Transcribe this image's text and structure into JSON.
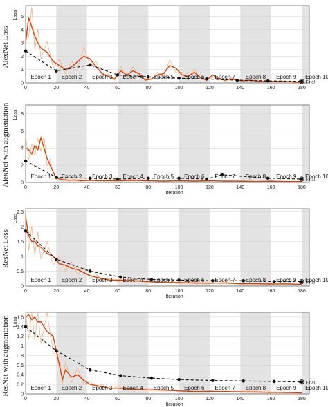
{
  "chart_data": [
    {
      "type": "line",
      "row_label": "AlexNet Loss",
      "ylabel": "Loss",
      "xlabel": "",
      "xlim": [
        0,
        185
      ],
      "ylim": [
        0,
        5.8
      ],
      "xticks": [
        0,
        20,
        40,
        60,
        80,
        100,
        120,
        140,
        160,
        180
      ],
      "yticks": [
        0,
        1,
        2,
        3,
        4,
        5
      ],
      "epoch_labels": [
        "Epoch 1",
        "Epoch 2",
        "Epoch 3",
        "Epoch 4",
        "Epoch 5",
        "Epoch 6",
        "Epoch 7",
        "Epoch 8",
        "Epoch 9",
        "Epoch 10"
      ],
      "final_label": "Final",
      "validation": {
        "x": [
          0,
          20,
          42,
          60,
          80,
          100,
          118,
          138,
          158,
          180
        ],
        "y": [
          2.4,
          0.9,
          1.35,
          0.6,
          0.45,
          0.35,
          0.3,
          0.2,
          0.15,
          0.12
        ]
      },
      "training_x": [
        0,
        2,
        4,
        6,
        8,
        10,
        14,
        18,
        22,
        26,
        30,
        34,
        38,
        42,
        46,
        50,
        54,
        58,
        62,
        66,
        70,
        74,
        78,
        82,
        86,
        90,
        94,
        98,
        102,
        106,
        110,
        114,
        118,
        122,
        126,
        130,
        134,
        138,
        142,
        146,
        150,
        154,
        158,
        162,
        166,
        170,
        174,
        178,
        180
      ],
      "training_y": [
        3.0,
        4.9,
        4.2,
        3.5,
        3.0,
        2.6,
        2.3,
        1.6,
        1.3,
        1.0,
        1.2,
        1.6,
        2.0,
        1.8,
        1.2,
        0.7,
        0.5,
        0.3,
        0.9,
        0.6,
        0.9,
        0.7,
        0.2,
        0.3,
        0.6,
        0.7,
        1.3,
        1.1,
        0.6,
        0.5,
        0.8,
        0.4,
        0.2,
        0.6,
        0.3,
        0.2,
        0.3,
        0.2,
        0.15,
        0.2,
        0.15,
        0.1,
        0.15,
        0.1,
        0.12,
        0.1,
        0.08,
        0.05,
        0.05
      ]
    },
    {
      "type": "line",
      "row_label": "AlexNet with augmentation",
      "ylabel": "Loss",
      "xlabel": "Iteration",
      "xlim": [
        0,
        185
      ],
      "ylim": [
        0,
        9
      ],
      "xticks": [
        0,
        20,
        40,
        60,
        80,
        100,
        120,
        140,
        160,
        180
      ],
      "yticks": [
        0,
        2,
        4,
        6,
        8
      ],
      "epoch_labels": [
        "Epoch 1",
        "Epoch 2",
        "Epoch 3",
        "Epoch 4",
        "Epoch 5",
        "Epoch 6",
        "Epoch 7",
        "Epoch 8",
        "Epoch 9",
        "Epoch 10"
      ],
      "final_label": "Final",
      "validation": {
        "x": [
          0,
          20,
          42,
          60,
          80,
          100,
          118,
          128,
          158,
          180
        ],
        "y": [
          2.5,
          0.6,
          0.5,
          0.4,
          0.5,
          0.5,
          0.4,
          0.9,
          0.5,
          0.4
        ]
      },
      "training_x": [
        0,
        2,
        4,
        6,
        8,
        10,
        12,
        14,
        16,
        18,
        20,
        24,
        28,
        32,
        36,
        40,
        50,
        60,
        70,
        80,
        90,
        100,
        110,
        120,
        130,
        140,
        150,
        160,
        170,
        180
      ],
      "training_y": [
        4.0,
        3.8,
        3.3,
        4.3,
        3.8,
        5.2,
        4.0,
        2.8,
        2.0,
        1.2,
        0.5,
        0.35,
        0.25,
        0.3,
        0.2,
        0.25,
        0.2,
        0.2,
        0.25,
        0.2,
        0.15,
        0.2,
        0.15,
        0.2,
        0.15,
        0.15,
        0.1,
        0.15,
        0.1,
        0.1
      ]
    },
    {
      "type": "line",
      "row_label": "ResNet Loss",
      "ylabel": "Loss",
      "xlabel": "Iteration",
      "xlim": [
        0,
        185
      ],
      "ylim": [
        0,
        2.6
      ],
      "xticks": [
        0,
        20,
        40,
        60,
        80,
        100,
        120,
        140,
        160,
        180
      ],
      "yticks": [
        0,
        0.5,
        1,
        1.5,
        2,
        2.5
      ],
      "epoch_labels": [
        "Epoch 1",
        "Epoch 2",
        "Epoch 3",
        "Epoch 4",
        "Epoch 5",
        "Epoch 6",
        "Epoch 7",
        "Epoch 8",
        "Epoch 9",
        "Epoch 10"
      ],
      "final_label": "Final",
      "validation": {
        "x": [
          0,
          20,
          42,
          62,
          82,
          100,
          122,
          142,
          162,
          180
        ],
        "y": [
          1.85,
          0.9,
          0.5,
          0.3,
          0.22,
          0.2,
          0.18,
          0.18,
          0.15,
          0.15
        ]
      },
      "training_x": [
        0,
        2,
        4,
        6,
        8,
        10,
        14,
        18,
        22,
        26,
        30,
        34,
        38,
        42,
        46,
        50,
        55,
        60,
        70,
        80,
        90,
        100,
        110,
        120,
        130,
        140,
        150,
        160,
        170,
        180
      ],
      "training_y": [
        2.3,
        1.7,
        1.5,
        1.5,
        1.35,
        1.3,
        1.1,
        1.0,
        0.75,
        0.7,
        0.6,
        0.55,
        0.45,
        0.35,
        0.3,
        0.25,
        0.2,
        0.2,
        0.18,
        0.15,
        0.12,
        0.12,
        0.1,
        0.1,
        0.1,
        0.08,
        0.08,
        0.07,
        0.07,
        0.06
      ]
    },
    {
      "type": "line",
      "row_label": "ResNet with augmentation",
      "ylabel": "Loss",
      "xlabel": "Iteration",
      "xlim": [
        0,
        185
      ],
      "ylim": [
        0,
        1.7
      ],
      "xticks": [
        0,
        20,
        40,
        60,
        80,
        100,
        120,
        140,
        160,
        180
      ],
      "yticks": [
        0,
        0.2,
        0.4,
        0.6,
        0.8,
        1,
        1.2,
        1.4,
        1.6
      ],
      "epoch_labels": [
        "Epoch 1",
        "Epoch 2",
        "Epoch 3",
        "Epoch 4",
        "Epoch 5",
        "Epoch 6",
        "Epoch 7",
        "Epoch 8",
        "Epoch 9",
        "Epoch 10"
      ],
      "final_label": "Final",
      "validation": {
        "x": [
          0,
          20,
          42,
          62,
          82,
          100,
          122,
          142,
          162,
          180
        ],
        "y": [
          1.4,
          0.9,
          0.5,
          0.38,
          0.33,
          0.3,
          0.28,
          0.27,
          0.26,
          0.25
        ]
      },
      "training_x": [
        0,
        2,
        4,
        6,
        8,
        10,
        14,
        18,
        22,
        24,
        26,
        30,
        34,
        38,
        42,
        46,
        50,
        55,
        60,
        70,
        80,
        90,
        100,
        110,
        120,
        130,
        140,
        150,
        160,
        170,
        180
      ],
      "training_y": [
        1.6,
        1.65,
        1.55,
        1.6,
        1.5,
        1.5,
        1.3,
        1.2,
        0.6,
        0.3,
        0.5,
        0.35,
        0.4,
        0.28,
        0.2,
        0.18,
        0.15,
        0.12,
        0.12,
        0.1,
        0.08,
        0.08,
        0.06,
        0.05,
        0.05,
        0.05,
        0.04,
        0.04,
        0.03,
        0.03,
        0.02
      ]
    }
  ]
}
